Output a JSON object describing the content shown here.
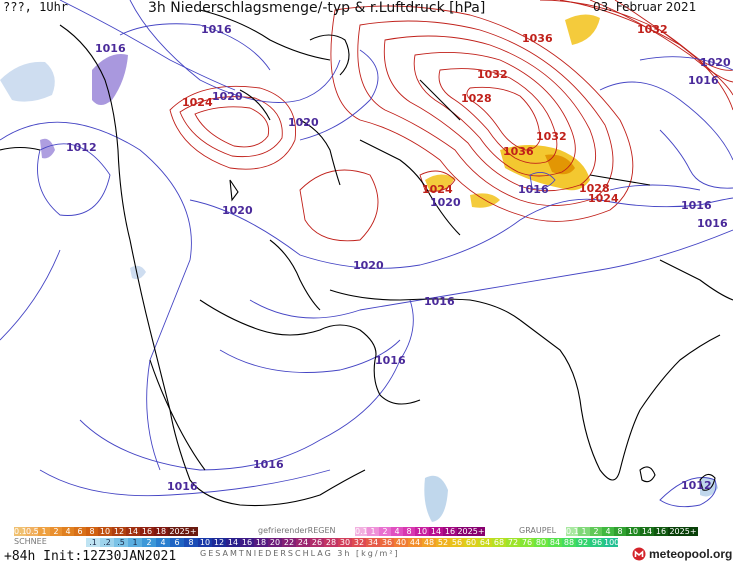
{
  "header": {
    "top_left": "???, 1Uhr",
    "title": "3h Niederschlagsmenge/-typ & r.Luftdruck [hPa]",
    "date": "03. Februar 2021"
  },
  "colors": {
    "isobar_high": "#c0201a",
    "isobar_low": "#4040c0",
    "coast": "#000000",
    "snow_shade": "#8a6fcf",
    "rain_shade": "#e8b800"
  },
  "isobar_labels": {
    "red": [
      "1036",
      "1032",
      "1032",
      "1028",
      "1032",
      "1036",
      "1024",
      "1024",
      "1028",
      "1024"
    ],
    "blue": [
      "1016",
      "1016",
      "1020",
      "1020",
      "1012",
      "1020",
      "1020",
      "1020",
      "1016",
      "1016",
      "1016",
      "1016",
      "1020",
      "1016",
      "1016",
      "1016",
      "1016",
      "1012"
    ]
  },
  "legend": {
    "snow": {
      "title": "SCHNEE",
      "labels": [
        "0.1",
        "0.5",
        "1",
        "2",
        "4",
        "6",
        "8",
        "10",
        "12",
        "14",
        "16",
        "18",
        "2025+"
      ]
    },
    "freezing_rain": {
      "title": "gefrierenderREGEN",
      "labels": [
        "0.1",
        "1",
        "2",
        "4",
        "8",
        "10",
        "14",
        "16",
        "2025+"
      ]
    },
    "graupel": {
      "title": "GRAUPEL",
      "labels": [
        "0.1",
        "1",
        "2",
        "4",
        "8",
        "10",
        "14",
        "16",
        "2025+"
      ]
    },
    "total": {
      "title": "GESAMTNIEDERSCHLAG 3h [kg/m²]",
      "labels": [
        ".1",
        ".2",
        ".5",
        "1",
        "2",
        "4",
        "6",
        "8",
        "10",
        "12",
        "14",
        "16",
        "18",
        "20",
        "22",
        "24",
        "26",
        "28",
        "30",
        "32",
        "34",
        "36",
        "40",
        "44",
        "48",
        "52",
        "56",
        "60",
        "64",
        "68",
        "72",
        "76",
        "80",
        "84",
        "88",
        "92",
        "96",
        "100"
      ]
    }
  },
  "footer": {
    "run_info": "+84h  Init:12Z30JAN2021",
    "brand": "meteopool.org"
  }
}
